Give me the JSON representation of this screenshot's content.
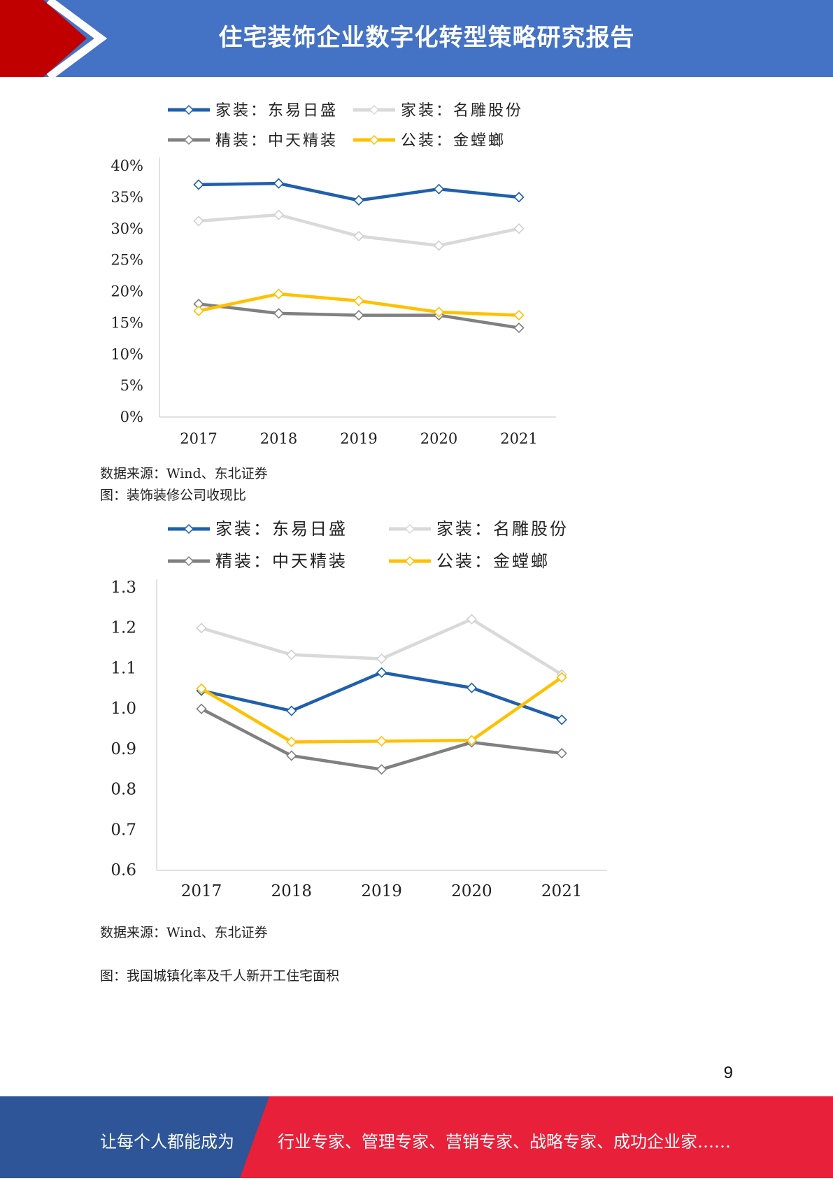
{
  "header": {
    "title": "住宅装饰企业数字化转型策略研究报告"
  },
  "colors": {
    "header_blue": "#4472C4",
    "header_red": "#C00000",
    "footer_blue": "#2E5597",
    "footer_red": "#E8203A"
  },
  "chart_data": [
    {
      "type": "line",
      "categories": [
        "2017",
        "2018",
        "2019",
        "2020",
        "2021"
      ],
      "y_ticks": [
        "0%",
        "5%",
        "10%",
        "15%",
        "20%",
        "25%",
        "30%",
        "35%",
        "40%"
      ],
      "ylim": [
        0,
        40
      ],
      "unit": "%",
      "grid": false,
      "legend_position": "top",
      "series": [
        {
          "name": "家装：东易日盛",
          "color": "#1F5FAD",
          "values": [
            37.0,
            37.2,
            34.5,
            36.3,
            35.0
          ]
        },
        {
          "name": "家装：名雕股份",
          "color": "#D9D9D9",
          "values": [
            31.2,
            32.2,
            28.8,
            27.3,
            30.0
          ]
        },
        {
          "name": "精装：中天精装",
          "color": "#808080",
          "values": [
            18.0,
            16.5,
            16.2,
            16.2,
            14.2
          ]
        },
        {
          "name": "公装：金螳螂",
          "color": "#FFC000",
          "values": [
            16.9,
            19.6,
            18.5,
            16.7,
            16.2
          ]
        }
      ]
    },
    {
      "type": "line",
      "categories": [
        "2017",
        "2018",
        "2019",
        "2020",
        "2021"
      ],
      "y_ticks": [
        "0.6",
        "0.7",
        "0.8",
        "0.9",
        "1.0",
        "1.1",
        "1.2",
        "1.3"
      ],
      "ylim": [
        0.6,
        1.3
      ],
      "grid": false,
      "legend_position": "top",
      "series": [
        {
          "name": "家装：东易日盛",
          "color": "#1F5FAD",
          "values": [
            1.045,
            0.995,
            1.09,
            1.052,
            0.973
          ]
        },
        {
          "name": "家装：名雕股份",
          "color": "#D9D9D9",
          "values": [
            1.2,
            1.134,
            1.124,
            1.222,
            1.085
          ]
        },
        {
          "name": "精装：中天精装",
          "color": "#808080",
          "values": [
            1.0,
            0.884,
            0.85,
            0.917,
            0.89
          ]
        },
        {
          "name": "公装：金螳螂",
          "color": "#FFC000",
          "values": [
            1.05,
            0.918,
            0.92,
            0.922,
            1.078
          ]
        }
      ]
    }
  ],
  "captions": {
    "source_1": "数据来源：Wind、东北证券",
    "figure_2_title": "图：装饰装修公司收现比",
    "source_2": "数据来源：Wind、东北证券",
    "figure_3_title": "图：我国城镇化率及千人新开工住宅面积"
  },
  "page_number": "9",
  "footer": {
    "left_text": "让每个人都能成为",
    "right_text": "行业专家、管理专家、营销专家、战略专家、成功企业家……"
  }
}
